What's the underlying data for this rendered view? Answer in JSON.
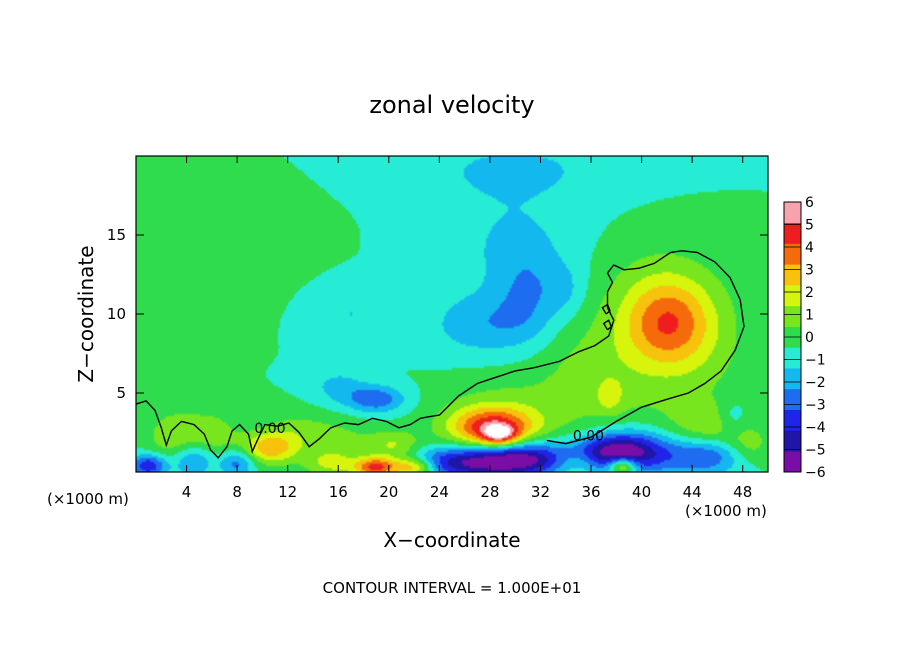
{
  "chart_data": {
    "type": "heatmap",
    "title": "zonal velocity",
    "xlabel": "X−coordinate",
    "ylabel": "Z−coordinate",
    "x_unit_left": "(×1000 m)",
    "x_unit_right": "(×1000 m)",
    "xlim": [
      0,
      50
    ],
    "ylim": [
      0,
      20
    ],
    "x_ticks": [
      4,
      8,
      12,
      16,
      20,
      24,
      28,
      32,
      36,
      40,
      44,
      48
    ],
    "x_tick_labels": [
      "4",
      "8",
      "12",
      "16",
      "20",
      "24",
      "28",
      "32",
      "36",
      "40",
      "44",
      "48"
    ],
    "y_ticks": [
      5,
      10,
      15
    ],
    "y_tick_labels": [
      "5",
      "10",
      "15"
    ],
    "colorbar": {
      "levels": [
        -6,
        -5,
        -4,
        -3,
        -2,
        -1,
        0,
        1,
        2,
        3,
        4,
        5,
        6
      ],
      "labels": [
        "−6",
        "−5",
        "−4",
        "−3",
        "−2",
        "−1",
        "0",
        "1",
        "2",
        "3",
        "4",
        "5",
        "6"
      ],
      "colors": [
        "#7a0da6",
        "#1f16a8",
        "#1f24e8",
        "#1e6cf0",
        "#13b8ef",
        "#27ecd5",
        "#2edc4e",
        "#77e61e",
        "#d6f40c",
        "#f7c20c",
        "#f56a0a",
        "#ef1d1d",
        "#f6a3ae"
      ]
    },
    "background_value": -0.5,
    "blobs": [
      {
        "x": 19,
        "y": 4.6,
        "sx": 1.6,
        "sy": 0.6,
        "v": -2.8
      },
      {
        "x": 16,
        "y": 5.4,
        "sx": 1.6,
        "sy": 0.8,
        "v": -1.3
      },
      {
        "x": 27.5,
        "y": 9.3,
        "sx": 3.0,
        "sy": 1.4,
        "v": -1.7
      },
      {
        "x": 31,
        "y": 11.2,
        "sx": 1.8,
        "sy": 2.2,
        "v": -1.6
      },
      {
        "x": 29.5,
        "y": 14.5,
        "sx": 4,
        "sy": 2.5,
        "v": -1.0
      },
      {
        "x": 30,
        "y": 19.2,
        "sx": 6,
        "sy": 1.5,
        "v": -1.1
      },
      {
        "x": 17,
        "y": 10,
        "sx": 1.8,
        "sy": 1.2,
        "v": -1.0
      },
      {
        "x": 34,
        "y": 11.5,
        "sx": 1.2,
        "sy": 1.2,
        "v": -1.0
      },
      {
        "x": 4,
        "y": 11,
        "sx": 2.5,
        "sy": 2,
        "v": 0.3
      },
      {
        "x": 11,
        "y": 15,
        "sx": 3,
        "sy": 2,
        "v": 0.2
      },
      {
        "x": 42,
        "y": 9.4,
        "sx": 2.4,
        "sy": 1.9,
        "v": 3.6
      },
      {
        "x": 41,
        "y": 11.5,
        "sx": 3.5,
        "sy": 2.5,
        "v": 1.0
      },
      {
        "x": 44.5,
        "y": 8,
        "sx": 3,
        "sy": 3,
        "v": 1.1
      },
      {
        "x": 36.5,
        "y": 6,
        "sx": 4,
        "sy": 2.8,
        "v": 1.4
      },
      {
        "x": 37.5,
        "y": 4.8,
        "sx": 0.7,
        "sy": 0.7,
        "v": 1.5
      },
      {
        "x": 28.2,
        "y": 2.8,
        "sx": 2.4,
        "sy": 0.9,
        "v": 5.3
      },
      {
        "x": 28.8,
        "y": 2.3,
        "sx": 1.0,
        "sy": 0.45,
        "v": 3.5
      },
      {
        "x": 28.5,
        "y": 4.0,
        "sx": 3.5,
        "sy": 1.5,
        "v": 1.0
      },
      {
        "x": 3,
        "y": 2.2,
        "sx": 1.5,
        "sy": 1.2,
        "v": 1.8
      },
      {
        "x": 6,
        "y": 2.3,
        "sx": 1.5,
        "sy": 1.1,
        "v": 1.6
      },
      {
        "x": 10.5,
        "y": 1.5,
        "sx": 1.5,
        "sy": 0.7,
        "v": 3.5
      },
      {
        "x": 12.5,
        "y": 2.5,
        "sx": 1.8,
        "sy": 1.0,
        "v": 1.2
      },
      {
        "x": 16,
        "y": 2.0,
        "sx": 2,
        "sy": 1.0,
        "v": 1.2
      },
      {
        "x": 20.5,
        "y": 1.6,
        "sx": 1.5,
        "sy": 0.7,
        "v": 2.3
      },
      {
        "x": 44,
        "y": 2.5,
        "sx": 2,
        "sy": 1.2,
        "v": 1.3
      },
      {
        "x": 46.5,
        "y": 3.2,
        "sx": 1.2,
        "sy": 0.9,
        "v": 1.6
      },
      {
        "x": 1,
        "y": 0.4,
        "sx": 1,
        "sy": 0.5,
        "v": -4.0
      },
      {
        "x": 4.5,
        "y": 0.8,
        "sx": 1.2,
        "sy": 0.8,
        "v": -2.5
      },
      {
        "x": 8,
        "y": 0.6,
        "sx": 1,
        "sy": 0.6,
        "v": -2.6
      },
      {
        "x": 19,
        "y": 0.3,
        "sx": 1.2,
        "sy": 0.45,
        "v": 5.5
      },
      {
        "x": 22,
        "y": 0.3,
        "sx": 1.2,
        "sy": 0.45,
        "v": 4.5
      },
      {
        "x": 15.5,
        "y": 0.5,
        "sx": 1.5,
        "sy": 0.6,
        "v": 2.0
      },
      {
        "x": 27,
        "y": 0.6,
        "sx": 4,
        "sy": 0.7,
        "v": -5.2
      },
      {
        "x": 31,
        "y": 1.0,
        "sx": 2.5,
        "sy": 0.8,
        "v": -3.2
      },
      {
        "x": 35,
        "y": 0.6,
        "sx": 1.5,
        "sy": 0.6,
        "v": 1.6
      },
      {
        "x": 37.5,
        "y": 1.2,
        "sx": 2,
        "sy": 0.8,
        "v": -4.3
      },
      {
        "x": 40,
        "y": 1.3,
        "sx": 2.5,
        "sy": 1.0,
        "v": -3.5
      },
      {
        "x": 38.5,
        "y": 0.4,
        "sx": 0.8,
        "sy": 0.4,
        "v": 5.0
      },
      {
        "x": 45,
        "y": 1.0,
        "sx": 2,
        "sy": 0.8,
        "v": -3.0
      },
      {
        "x": 47,
        "y": 3.4,
        "sx": 0.9,
        "sy": 0.8,
        "v": -2.0
      },
      {
        "x": 48.5,
        "y": 1.8,
        "sx": 1.2,
        "sy": 0.8,
        "v": 1.5
      }
    ],
    "zero_contours": [
      [
        [
          24.0,
          3.6
        ],
        [
          25.5,
          4.8
        ],
        [
          27.0,
          5.6
        ],
        [
          28.5,
          6.0
        ],
        [
          30.0,
          6.4
        ],
        [
          31.5,
          6.6
        ],
        [
          33.5,
          7.0
        ],
        [
          35.0,
          7.6
        ],
        [
          36.3,
          8.0
        ],
        [
          37.4,
          8.6
        ],
        [
          37.8,
          9.6
        ],
        [
          37.3,
          10.4
        ],
        [
          37.3,
          11.4
        ],
        [
          37.7,
          12.0
        ],
        [
          37.3,
          12.6
        ],
        [
          37.8,
          13.1
        ],
        [
          38.6,
          12.8
        ],
        [
          39.8,
          12.9
        ],
        [
          41.0,
          13.2
        ],
        [
          42.3,
          13.9
        ],
        [
          43.2,
          14.0
        ],
        [
          44.4,
          13.9
        ],
        [
          45.8,
          13.3
        ],
        [
          47.0,
          12.3
        ],
        [
          47.8,
          10.9
        ],
        [
          48.1,
          9.2
        ],
        [
          47.4,
          7.7
        ],
        [
          46.3,
          6.4
        ],
        [
          45.0,
          5.6
        ],
        [
          43.7,
          5.0
        ],
        [
          42.0,
          4.6
        ],
        [
          40.0,
          4.1
        ],
        [
          38.0,
          3.2
        ],
        [
          36.0,
          2.2
        ],
        [
          34.0,
          1.8
        ],
        [
          32.5,
          2.0
        ]
      ],
      [
        [
          0.0,
          4.3
        ],
        [
          0.8,
          4.5
        ],
        [
          1.5,
          3.9
        ],
        [
          2.0,
          2.8
        ],
        [
          2.4,
          1.7
        ],
        [
          2.8,
          2.6
        ],
        [
          3.6,
          3.2
        ],
        [
          4.6,
          3.0
        ],
        [
          5.4,
          2.4
        ],
        [
          5.9,
          1.4
        ],
        [
          6.5,
          0.9
        ],
        [
          7.2,
          1.6
        ],
        [
          7.6,
          2.6
        ],
        [
          8.2,
          3.0
        ],
        [
          8.9,
          2.4
        ],
        [
          9.2,
          1.3
        ],
        [
          9.6,
          2.0
        ],
        [
          10.2,
          3.0
        ],
        [
          11.2,
          2.9
        ],
        [
          12.1,
          3.1
        ],
        [
          12.9,
          2.5
        ],
        [
          13.7,
          1.6
        ],
        [
          14.5,
          2.1
        ],
        [
          15.4,
          2.8
        ],
        [
          16.5,
          3.1
        ],
        [
          17.6,
          3.0
        ],
        [
          18.7,
          3.4
        ],
        [
          19.8,
          3.2
        ],
        [
          20.8,
          2.8
        ],
        [
          21.7,
          3.0
        ],
        [
          22.5,
          3.4
        ],
        [
          23.2,
          3.5
        ],
        [
          24.0,
          3.6
        ]
      ],
      [
        [
          37.2,
          10.0
        ],
        [
          37.5,
          10.2
        ],
        [
          37.3,
          10.6
        ],
        [
          36.9,
          10.4
        ],
        [
          37.2,
          10.0
        ]
      ],
      [
        [
          37.3,
          9.0
        ],
        [
          37.6,
          9.2
        ],
        [
          37.4,
          9.6
        ],
        [
          37.0,
          9.4
        ],
        [
          37.3,
          9.0
        ]
      ]
    ],
    "contour_labels": [
      {
        "x": 10.6,
        "y": 2.8,
        "text": "0.00"
      },
      {
        "x": 35.8,
        "y": 2.3,
        "text": "0.00"
      }
    ],
    "footer": "CONTOUR INTERVAL = 1.000E+01"
  }
}
